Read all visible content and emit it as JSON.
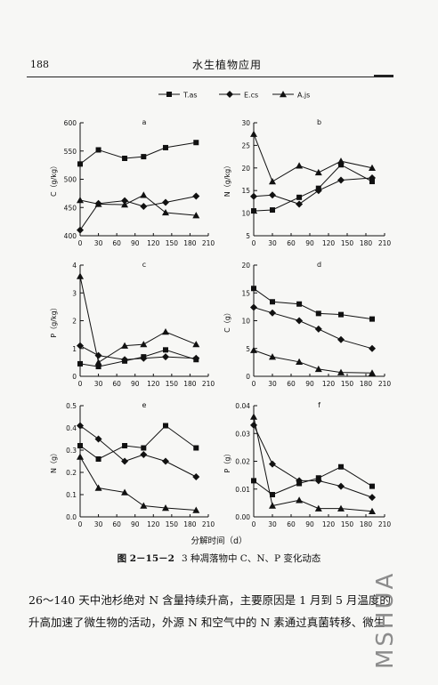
{
  "header": {
    "page_number": "188",
    "title": "水生植物应用"
  },
  "legend": {
    "entries": [
      "T.as",
      "E.cs",
      "A.js"
    ]
  },
  "common_xlabel": "分解时间（d）",
  "caption": {
    "number": "图 2－15－2",
    "text": "3 种凋落物中 C、N、P 变化动态"
  },
  "body_text": {
    "line1": "26～140 天中池杉绝对 N 含量持续升高，主要原因是 1 月到 5 月温度的",
    "line2": "升高加速了微生物的活动，外源 N 和空气中的 N 素通过真菌转移、微生"
  },
  "watermark": "MSHUA",
  "chart_data": [
    {
      "type": "line",
      "panel": "a",
      "ylabel": "C（g/kg）",
      "ylim": [
        400,
        600
      ],
      "yticks": [
        400,
        450,
        500,
        550,
        600
      ],
      "xlim": [
        0,
        210
      ],
      "xticks": [
        0,
        30,
        60,
        90,
        120,
        150,
        180,
        210
      ],
      "x": [
        0,
        30,
        73,
        104,
        140,
        190
      ],
      "series": [
        {
          "name": "T.as",
          "marker": "square",
          "values": [
            527,
            552,
            537,
            540,
            556,
            565
          ]
        },
        {
          "name": "E.cs",
          "marker": "diamond",
          "values": [
            410,
            457,
            462,
            452,
            459,
            470
          ]
        },
        {
          "name": "A.js",
          "marker": "triangle",
          "values": [
            463,
            456,
            455,
            472,
            441,
            436
          ]
        }
      ]
    },
    {
      "type": "line",
      "panel": "b",
      "ylabel": "N（g/kg）",
      "ylim": [
        5,
        30
      ],
      "yticks": [
        5,
        10,
        15,
        20,
        25,
        30
      ],
      "xlim": [
        0,
        210
      ],
      "xticks": [
        0,
        30,
        60,
        90,
        120,
        150,
        180,
        210
      ],
      "x": [
        0,
        30,
        73,
        104,
        140,
        190
      ],
      "series": [
        {
          "name": "T.as",
          "marker": "square",
          "values": [
            10.5,
            10.7,
            13.5,
            15.5,
            20.7,
            17.0
          ]
        },
        {
          "name": "E.cs",
          "marker": "diamond",
          "values": [
            13.7,
            14.0,
            12.0,
            15.0,
            17.3,
            17.8
          ]
        },
        {
          "name": "A.js",
          "marker": "triangle",
          "values": [
            27.5,
            17.0,
            20.5,
            19.0,
            21.5,
            20.0
          ]
        }
      ]
    },
    {
      "type": "line",
      "panel": "c",
      "ylabel": "P（g/kg）",
      "ylim": [
        0,
        4
      ],
      "yticks": [
        0,
        1,
        2,
        3,
        4
      ],
      "xlim": [
        0,
        210
      ],
      "xticks": [
        0,
        30,
        60,
        90,
        120,
        150,
        180,
        210
      ],
      "x": [
        0,
        30,
        73,
        104,
        140,
        190
      ],
      "series": [
        {
          "name": "T.as",
          "marker": "square",
          "values": [
            0.45,
            0.35,
            0.55,
            0.7,
            0.95,
            0.6
          ]
        },
        {
          "name": "E.cs",
          "marker": "diamond",
          "values": [
            1.1,
            0.75,
            0.6,
            0.65,
            0.7,
            0.65
          ]
        },
        {
          "name": "A.js",
          "marker": "triangle",
          "values": [
            3.6,
            0.5,
            1.1,
            1.15,
            1.6,
            1.15
          ]
        }
      ]
    },
    {
      "type": "line",
      "panel": "d",
      "ylabel": "C（g）",
      "ylim": [
        0,
        20
      ],
      "yticks": [
        0,
        5,
        10,
        15,
        20
      ],
      "xlim": [
        0,
        210
      ],
      "xticks": [
        0,
        30,
        60,
        90,
        120,
        150,
        180,
        210
      ],
      "x": [
        0,
        30,
        73,
        104,
        140,
        190
      ],
      "series": [
        {
          "name": "T.as",
          "marker": "square",
          "values": [
            15.8,
            13.4,
            13.0,
            11.3,
            11.1,
            10.3
          ]
        },
        {
          "name": "E.cs",
          "marker": "diamond",
          "values": [
            12.4,
            11.4,
            10.0,
            8.5,
            6.6,
            5.0
          ]
        },
        {
          "name": "A.js",
          "marker": "triangle",
          "values": [
            4.7,
            3.5,
            2.6,
            1.3,
            0.7,
            0.6
          ]
        }
      ]
    },
    {
      "type": "line",
      "panel": "e",
      "ylabel": "N（g）",
      "ylim": [
        0,
        0.5
      ],
      "yticks": [
        0.0,
        0.1,
        0.2,
        0.3,
        0.4,
        0.5
      ],
      "xlim": [
        0,
        210
      ],
      "xticks": [
        0,
        30,
        60,
        90,
        120,
        150,
        180,
        210
      ],
      "x": [
        0,
        30,
        73,
        104,
        140,
        190
      ],
      "series": [
        {
          "name": "T.as",
          "marker": "square",
          "values": [
            0.32,
            0.26,
            0.32,
            0.31,
            0.41,
            0.31
          ]
        },
        {
          "name": "E.cs",
          "marker": "diamond",
          "values": [
            0.41,
            0.35,
            0.25,
            0.28,
            0.25,
            0.18
          ]
        },
        {
          "name": "A.js",
          "marker": "triangle",
          "values": [
            0.27,
            0.13,
            0.11,
            0.05,
            0.04,
            0.03
          ]
        }
      ]
    },
    {
      "type": "line",
      "panel": "f",
      "ylabel": "P（g）",
      "ylim": [
        0,
        0.04
      ],
      "yticks": [
        0.0,
        0.01,
        0.02,
        0.03,
        0.04
      ],
      "xlim": [
        0,
        210
      ],
      "xticks": [
        0,
        30,
        60,
        90,
        120,
        150,
        180,
        210
      ],
      "x": [
        0,
        30,
        73,
        104,
        140,
        190
      ],
      "series": [
        {
          "name": "T.as",
          "marker": "square",
          "values": [
            0.013,
            0.008,
            0.012,
            0.014,
            0.018,
            0.011
          ]
        },
        {
          "name": "E.cs",
          "marker": "diamond",
          "values": [
            0.033,
            0.019,
            0.013,
            0.013,
            0.011,
            0.007
          ]
        },
        {
          "name": "A.js",
          "marker": "triangle",
          "values": [
            0.036,
            0.004,
            0.006,
            0.003,
            0.003,
            0.002
          ]
        }
      ]
    }
  ]
}
